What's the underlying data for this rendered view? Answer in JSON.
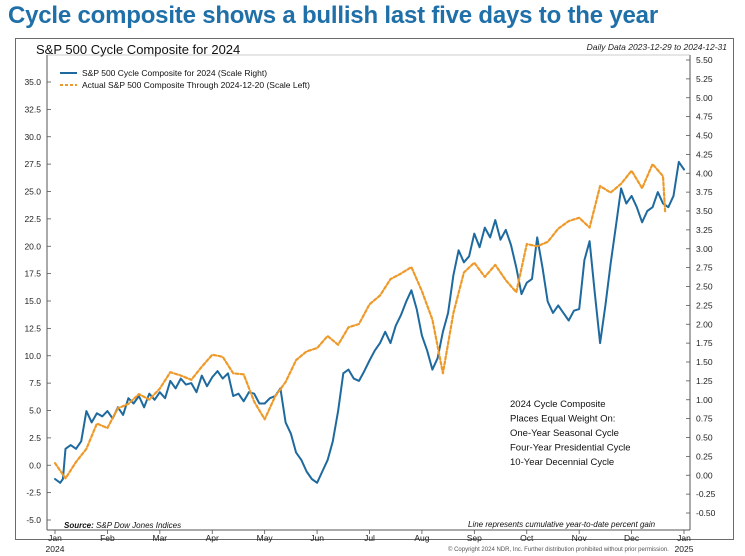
{
  "headline": "Cycle composite shows a bullish last five days to the year",
  "chart_data": {
    "type": "line",
    "title": "S&P 500 Cycle Composite for 2024",
    "subtitle": "Daily Data 2023-12-29 to 2024-12-31",
    "x_tick_labels": [
      "Jan",
      "Feb",
      "Mar",
      "Apr",
      "May",
      "Jun",
      "Jul",
      "Aug",
      "Sep",
      "Oct",
      "Nov",
      "Dec",
      "Jan"
    ],
    "x_year_labels": [
      "2024",
      "2025"
    ],
    "x_range": [
      0,
      12
    ],
    "left_axis": {
      "ylim": [
        -5.0,
        35.0
      ],
      "ticks": [
        "-5.0",
        "-2.5",
        "0.0",
        "2.5",
        "5.0",
        "7.5",
        "10.0",
        "12.5",
        "15.0",
        "17.5",
        "20.0",
        "22.5",
        "25.0",
        "27.5",
        "30.0",
        "32.5",
        "35.0"
      ]
    },
    "right_axis": {
      "ylim": [
        -0.5,
        5.5
      ],
      "ticks": [
        "-0.50",
        "-0.25",
        "0.00",
        "0.25",
        "0.50",
        "0.75",
        "1.00",
        "1.25",
        "1.50",
        "1.75",
        "2.00",
        "2.25",
        "2.50",
        "2.75",
        "3.00",
        "3.25",
        "3.50",
        "3.75",
        "4.00",
        "4.25",
        "4.50",
        "4.75",
        "5.00",
        "5.25",
        "5.50"
      ]
    },
    "series": [
      {
        "name": "S&P 500 Cycle Composite for 2024 (Scale Right)",
        "axis": "right",
        "color": "#1e6a9e",
        "style": "solid",
        "x": [
          0.0,
          0.1,
          0.15,
          0.2,
          0.3,
          0.4,
          0.5,
          0.6,
          0.7,
          0.8,
          0.9,
          1.0,
          1.1,
          1.2,
          1.3,
          1.4,
          1.5,
          1.6,
          1.7,
          1.8,
          1.9,
          2.0,
          2.1,
          2.2,
          2.3,
          2.4,
          2.5,
          2.6,
          2.7,
          2.8,
          2.9,
          3.0,
          3.1,
          3.2,
          3.3,
          3.4,
          3.5,
          3.6,
          3.7,
          3.8,
          3.9,
          4.0,
          4.1,
          4.2,
          4.3,
          4.4,
          4.5,
          4.6,
          4.7,
          4.8,
          4.9,
          5.0,
          5.1,
          5.2,
          5.3,
          5.4,
          5.5,
          5.6,
          5.7,
          5.8,
          5.9,
          6.0,
          6.1,
          6.2,
          6.3,
          6.4,
          6.5,
          6.6,
          6.7,
          6.8,
          6.9,
          7.0,
          7.1,
          7.2,
          7.3,
          7.4,
          7.5,
          7.6,
          7.7,
          7.8,
          7.9,
          8.0,
          8.1,
          8.2,
          8.3,
          8.4,
          8.5,
          8.6,
          8.7,
          8.8,
          8.9,
          9.0,
          9.1,
          9.2,
          9.3,
          9.4,
          9.5,
          9.6,
          9.7,
          9.8,
          9.9,
          10.0,
          10.1,
          10.2,
          10.3,
          10.4,
          10.5,
          10.6,
          10.7,
          10.8,
          10.9,
          11.0,
          11.1,
          11.2,
          11.3,
          11.4,
          11.5,
          11.6,
          11.7,
          11.8,
          11.9,
          12.0
        ],
        "y": [
          -0.05,
          -0.1,
          -0.05,
          0.35,
          0.4,
          0.35,
          0.45,
          0.85,
          0.7,
          0.82,
          0.78,
          0.85,
          0.75,
          0.9,
          0.8,
          1.02,
          0.95,
          1.05,
          0.9,
          1.08,
          1.0,
          1.1,
          1.02,
          1.25,
          1.15,
          1.28,
          1.2,
          1.22,
          1.1,
          1.32,
          1.18,
          1.3,
          1.38,
          1.28,
          1.35,
          1.05,
          1.08,
          0.98,
          1.1,
          1.08,
          0.95,
          0.95,
          1.02,
          1.05,
          1.15,
          0.7,
          0.55,
          0.3,
          0.2,
          0.05,
          -0.05,
          -0.1,
          0.05,
          0.2,
          0.45,
          0.85,
          1.35,
          1.4,
          1.28,
          1.25,
          1.38,
          1.52,
          1.65,
          1.75,
          1.9,
          1.75,
          1.98,
          2.12,
          2.3,
          2.45,
          2.2,
          1.85,
          1.65,
          1.4,
          1.55,
          1.9,
          2.15,
          2.65,
          2.98,
          2.82,
          2.9,
          3.2,
          3.02,
          3.28,
          3.15,
          3.38,
          3.12,
          3.25,
          3.05,
          2.75,
          2.4,
          2.55,
          2.6,
          3.15,
          2.75,
          2.3,
          2.15,
          2.25,
          2.15,
          2.05,
          2.18,
          2.2,
          2.85,
          3.1,
          2.4,
          1.75,
          2.25,
          2.8,
          3.3,
          3.8,
          3.6,
          3.7,
          3.55,
          3.35,
          3.5,
          3.55,
          3.75,
          3.6,
          3.55,
          3.7,
          4.15,
          4.05
        ]
      },
      {
        "name": "Actual S&P 500 Composite Through 2024-12-20 (Scale Left)",
        "axis": "left",
        "color": "#ee9a2a",
        "style": "dashed",
        "x": [
          0.0,
          0.2,
          0.4,
          0.6,
          0.8,
          1.0,
          1.2,
          1.4,
          1.6,
          1.8,
          2.0,
          2.2,
          2.4,
          2.6,
          2.8,
          3.0,
          3.2,
          3.4,
          3.6,
          3.8,
          4.0,
          4.2,
          4.4,
          4.6,
          4.8,
          5.0,
          5.2,
          5.4,
          5.6,
          5.8,
          6.0,
          6.2,
          6.4,
          6.6,
          6.8,
          7.0,
          7.2,
          7.4,
          7.6,
          7.8,
          8.0,
          8.2,
          8.4,
          8.6,
          8.8,
          9.0,
          9.2,
          9.4,
          9.6,
          9.8,
          10.0,
          10.2,
          10.4,
          10.6,
          10.8,
          11.0,
          11.2,
          11.4,
          11.6,
          11.64
        ],
        "y": [
          0.2,
          -1.2,
          0.3,
          1.5,
          3.8,
          3.4,
          5.2,
          5.6,
          6.5,
          6.0,
          7.0,
          8.5,
          8.2,
          7.8,
          9.0,
          10.1,
          9.9,
          8.4,
          8.3,
          5.8,
          4.2,
          6.3,
          7.6,
          9.6,
          10.4,
          10.7,
          11.8,
          11.0,
          12.6,
          12.9,
          14.7,
          15.5,
          17.0,
          17.5,
          18.1,
          15.9,
          13.3,
          8.4,
          13.9,
          17.6,
          18.5,
          17.2,
          18.3,
          16.9,
          15.8,
          20.2,
          20.0,
          20.4,
          21.6,
          22.3,
          22.6,
          21.7,
          25.5,
          24.9,
          25.7,
          26.9,
          25.3,
          27.5,
          26.4,
          23.2
        ]
      }
    ],
    "legend_position": "top-left",
    "annotation_lines": [
      "2024 Cycle Composite",
      "Places Equal Weight On:",
      "One-Year Seasonal Cycle",
      "Four-Year Presidential Cycle",
      "10-Year Decennial Cycle"
    ],
    "source_label": "Source:",
    "source_value": "S&P Dow Jones Indices",
    "footnote": "Line represents cumulative year-to-date percent gain"
  },
  "copyright": "© Copyright 2024 NDR, Inc. Further distribution prohibited without prior permission."
}
